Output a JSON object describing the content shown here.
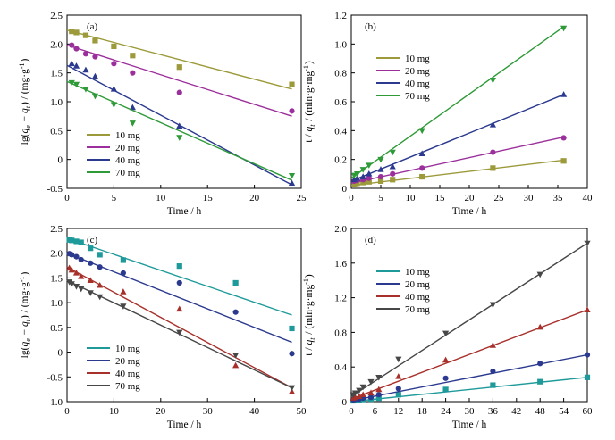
{
  "chart_data": [
    {
      "type": "scatter",
      "panel_label": "(a)",
      "xlabel": "Time / h",
      "ylabel": "lg(q_e − q_t) / (mg·g⁻¹)",
      "xlim": [
        0,
        25
      ],
      "ylim": [
        -0.5,
        2.5
      ],
      "xticks": [
        "0",
        "5",
        "10",
        "15",
        "20",
        "25"
      ],
      "yticks": [
        "-0.5",
        "0",
        "0.5",
        "1.0",
        "1.5",
        "2.0",
        "2.5"
      ],
      "legend_position": "bottom-left",
      "series": [
        {
          "name": "10 mg",
          "color": "#9c9a3a",
          "marker": "square",
          "points": [
            [
              0.5,
              2.22
            ],
            [
              1,
              2.2
            ],
            [
              2,
              2.15
            ],
            [
              3,
              2.06
            ],
            [
              5,
              1.96
            ],
            [
              7,
              1.8
            ],
            [
              12,
              1.6
            ],
            [
              24,
              1.3
            ]
          ],
          "fit": [
            [
              0,
              2.24
            ],
            [
              24,
              1.22
            ]
          ]
        },
        {
          "name": "20 mg",
          "color": "#9b2f9b",
          "marker": "circle",
          "points": [
            [
              0.5,
              1.98
            ],
            [
              1,
              1.92
            ],
            [
              2,
              1.83
            ],
            [
              3,
              1.78
            ],
            [
              5,
              1.66
            ],
            [
              7,
              1.5
            ],
            [
              12,
              1.16
            ],
            [
              24,
              0.84
            ]
          ],
          "fit": [
            [
              0,
              1.98
            ],
            [
              24,
              0.75
            ]
          ]
        },
        {
          "name": "40 mg",
          "color": "#2b3a8f",
          "marker": "triangle-up",
          "points": [
            [
              0.5,
              1.66
            ],
            [
              1,
              1.62
            ],
            [
              2,
              1.55
            ],
            [
              3,
              1.44
            ],
            [
              5,
              1.22
            ],
            [
              7,
              0.9
            ],
            [
              12,
              0.58
            ],
            [
              24,
              -0.41
            ]
          ],
          "fit": [
            [
              0,
              1.63
            ],
            [
              24,
              -0.44
            ]
          ]
        },
        {
          "name": "70 mg",
          "color": "#2e9a38",
          "marker": "triangle-down",
          "points": [
            [
              0.5,
              1.33
            ],
            [
              1,
              1.3
            ],
            [
              2,
              1.22
            ],
            [
              3,
              1.1
            ],
            [
              5,
              0.95
            ],
            [
              7,
              0.63
            ],
            [
              12,
              0.38
            ],
            [
              24,
              -0.28
            ]
          ],
          "fit": [
            [
              0,
              1.35
            ],
            [
              24,
              -0.36
            ]
          ]
        }
      ]
    },
    {
      "type": "scatter",
      "panel_label": "(b)",
      "xlabel": "Time / h",
      "ylabel": "t / q_t / (min·g·mg⁻¹)",
      "xlim": [
        0,
        40
      ],
      "ylim": [
        0,
        1.2
      ],
      "xticks": [
        "0",
        "5",
        "10",
        "15",
        "20",
        "25",
        "30",
        "35",
        "40"
      ],
      "yticks": [
        "0",
        "0.2",
        "0.4",
        "0.6",
        "0.8",
        "1.0",
        "1.2"
      ],
      "legend_position": "top-left",
      "series": [
        {
          "name": "10 mg",
          "color": "#9c9a3a",
          "marker": "square",
          "points": [
            [
              0.5,
              0.03
            ],
            [
              1,
              0.035
            ],
            [
              2,
              0.04
            ],
            [
              3,
              0.045
            ],
            [
              5,
              0.05
            ],
            [
              7,
              0.06
            ],
            [
              12,
              0.08
            ],
            [
              24,
              0.14
            ],
            [
              36,
              0.19
            ]
          ],
          "fit": [
            [
              0,
              0.02
            ],
            [
              36,
              0.195
            ]
          ]
        },
        {
          "name": "20 mg",
          "color": "#9b2f9b",
          "marker": "circle",
          "points": [
            [
              0.5,
              0.05
            ],
            [
              1,
              0.055
            ],
            [
              2,
              0.06
            ],
            [
              3,
              0.07
            ],
            [
              5,
              0.08
            ],
            [
              7,
              0.1
            ],
            [
              12,
              0.14
            ],
            [
              24,
              0.25
            ],
            [
              36,
              0.35
            ]
          ],
          "fit": [
            [
              0,
              0.035
            ],
            [
              36,
              0.355
            ]
          ]
        },
        {
          "name": "40 mg",
          "color": "#2b3a8f",
          "marker": "triangle-up",
          "points": [
            [
              0.5,
              0.06
            ],
            [
              1,
              0.07
            ],
            [
              2,
              0.08
            ],
            [
              3,
              0.1
            ],
            [
              5,
              0.13
            ],
            [
              7,
              0.15
            ],
            [
              12,
              0.24
            ],
            [
              24,
              0.44
            ],
            [
              36,
              0.65
            ]
          ],
          "fit": [
            [
              0,
              0.05
            ],
            [
              36,
              0.65
            ]
          ]
        },
        {
          "name": "70 mg",
          "color": "#2e9a38",
          "marker": "triangle-down",
          "points": [
            [
              0.5,
              0.09
            ],
            [
              1,
              0.1
            ],
            [
              2,
              0.13
            ],
            [
              3,
              0.16
            ],
            [
              5,
              0.2
            ],
            [
              7,
              0.25
            ],
            [
              12,
              0.4
            ],
            [
              24,
              0.75
            ],
            [
              36,
              1.11
            ]
          ],
          "fit": [
            [
              0,
              0.07
            ],
            [
              36,
              1.12
            ]
          ]
        }
      ]
    },
    {
      "type": "scatter",
      "panel_label": "(c)",
      "xlabel": "Time / h",
      "ylabel": "lg(q_e − q_t) / (mg·g⁻¹)",
      "xlim": [
        0,
        50
      ],
      "ylim": [
        -1.0,
        2.5
      ],
      "xticks": [
        "0",
        "10",
        "20",
        "30",
        "40",
        "50"
      ],
      "yticks": [
        "-1.0",
        "-0.5",
        "0",
        "0.5",
        "1.0",
        "1.5",
        "2.0",
        "2.5"
      ],
      "legend_position": "bottom-left",
      "series": [
        {
          "name": "10 mg",
          "color": "#1f9a9a",
          "marker": "square",
          "points": [
            [
              0.5,
              2.27
            ],
            [
              1,
              2.26
            ],
            [
              2,
              2.24
            ],
            [
              3,
              2.22
            ],
            [
              5,
              2.1
            ],
            [
              7,
              1.97
            ],
            [
              12,
              1.86
            ],
            [
              24,
              1.74
            ],
            [
              36,
              1.4
            ],
            [
              48,
              0.48
            ]
          ],
          "fit": [
            [
              0,
              2.3
            ],
            [
              48,
              0.75
            ]
          ]
        },
        {
          "name": "20 mg",
          "color": "#2b3a8f",
          "marker": "circle",
          "points": [
            [
              0.5,
              1.99
            ],
            [
              1,
              1.97
            ],
            [
              2,
              1.93
            ],
            [
              3,
              1.87
            ],
            [
              5,
              1.8
            ],
            [
              7,
              1.72
            ],
            [
              12,
              1.6
            ],
            [
              24,
              1.4
            ],
            [
              36,
              0.81
            ],
            [
              48,
              -0.03
            ]
          ],
          "fit": [
            [
              0,
              2.0
            ],
            [
              48,
              0.2
            ]
          ]
        },
        {
          "name": "40 mg",
          "color": "#a8302b",
          "marker": "triangle-up",
          "points": [
            [
              0.5,
              1.7
            ],
            [
              1,
              1.66
            ],
            [
              2,
              1.6
            ],
            [
              3,
              1.53
            ],
            [
              5,
              1.45
            ],
            [
              7,
              1.35
            ],
            [
              12,
              1.22
            ],
            [
              24,
              0.87
            ],
            [
              36,
              -0.27
            ],
            [
              48,
              -0.8
            ]
          ],
          "fit": [
            [
              0,
              1.72
            ],
            [
              48,
              -0.72
            ]
          ]
        },
        {
          "name": "70 mg",
          "color": "#474747",
          "marker": "triangle-down",
          "points": [
            [
              0.5,
              1.42
            ],
            [
              1,
              1.38
            ],
            [
              2,
              1.33
            ],
            [
              3,
              1.28
            ],
            [
              5,
              1.2
            ],
            [
              7,
              1.12
            ],
            [
              12,
              0.93
            ],
            [
              24,
              0.4
            ],
            [
              36,
              -0.06
            ],
            [
              48,
              -0.72
            ]
          ],
          "fit": [
            [
              0,
              1.45
            ],
            [
              48,
              -0.72
            ]
          ]
        }
      ]
    },
    {
      "type": "scatter",
      "panel_label": "(d)",
      "xlabel": "Time / h",
      "ylabel": "t / q_t / (min·g·mg⁻¹)",
      "xlim": [
        0,
        60
      ],
      "ylim": [
        0,
        2.0
      ],
      "xticks": [
        "0",
        "6",
        "12",
        "18",
        "24",
        "30",
        "36",
        "42",
        "48",
        "54",
        "60"
      ],
      "yticks": [
        "0",
        "0.4",
        "0.8",
        "1.2",
        "1.6",
        "2.0"
      ],
      "legend_position": "top-left",
      "series": [
        {
          "name": "10 mg",
          "color": "#1f9a9a",
          "marker": "square",
          "points": [
            [
              0.5,
              0.01
            ],
            [
              1,
              0.015
            ],
            [
              2,
              0.02
            ],
            [
              3,
              0.025
            ],
            [
              5,
              0.03
            ],
            [
              7,
              0.04
            ],
            [
              12,
              0.08
            ],
            [
              24,
              0.14
            ],
            [
              36,
              0.19
            ],
            [
              48,
              0.23
            ],
            [
              60,
              0.28
            ]
          ],
          "fit": [
            [
              0,
              0.0
            ],
            [
              60,
              0.28
            ]
          ]
        },
        {
          "name": "20 mg",
          "color": "#2b3a8f",
          "marker": "circle",
          "points": [
            [
              0.5,
              0.02
            ],
            [
              1,
              0.025
            ],
            [
              2,
              0.03
            ],
            [
              3,
              0.04
            ],
            [
              5,
              0.05
            ],
            [
              7,
              0.08
            ],
            [
              12,
              0.15
            ],
            [
              24,
              0.27
            ],
            [
              36,
              0.35
            ],
            [
              48,
              0.44
            ],
            [
              60,
              0.54
            ]
          ],
          "fit": [
            [
              0,
              0.01
            ],
            [
              60,
              0.54
            ]
          ]
        },
        {
          "name": "40 mg",
          "color": "#a8302b",
          "marker": "triangle-up",
          "points": [
            [
              0.5,
              0.04
            ],
            [
              1,
              0.05
            ],
            [
              2,
              0.06
            ],
            [
              3,
              0.08
            ],
            [
              5,
              0.1
            ],
            [
              7,
              0.14
            ],
            [
              12,
              0.29
            ],
            [
              24,
              0.48
            ],
            [
              36,
              0.65
            ],
            [
              48,
              0.86
            ],
            [
              60,
              1.06
            ]
          ],
          "fit": [
            [
              0,
              0.03
            ],
            [
              60,
              1.06
            ]
          ]
        },
        {
          "name": "70 mg",
          "color": "#474747",
          "marker": "triangle-down",
          "points": [
            [
              0.5,
              0.08
            ],
            [
              1,
              0.1
            ],
            [
              2,
              0.13
            ],
            [
              3,
              0.17
            ],
            [
              5,
              0.23
            ],
            [
              7,
              0.28
            ],
            [
              12,
              0.49
            ],
            [
              24,
              0.79
            ],
            [
              36,
              1.12
            ],
            [
              48,
              1.47
            ],
            [
              60,
              1.83
            ]
          ],
          "fit": [
            [
              0,
              0.06
            ],
            [
              60,
              1.83
            ]
          ]
        }
      ]
    }
  ]
}
